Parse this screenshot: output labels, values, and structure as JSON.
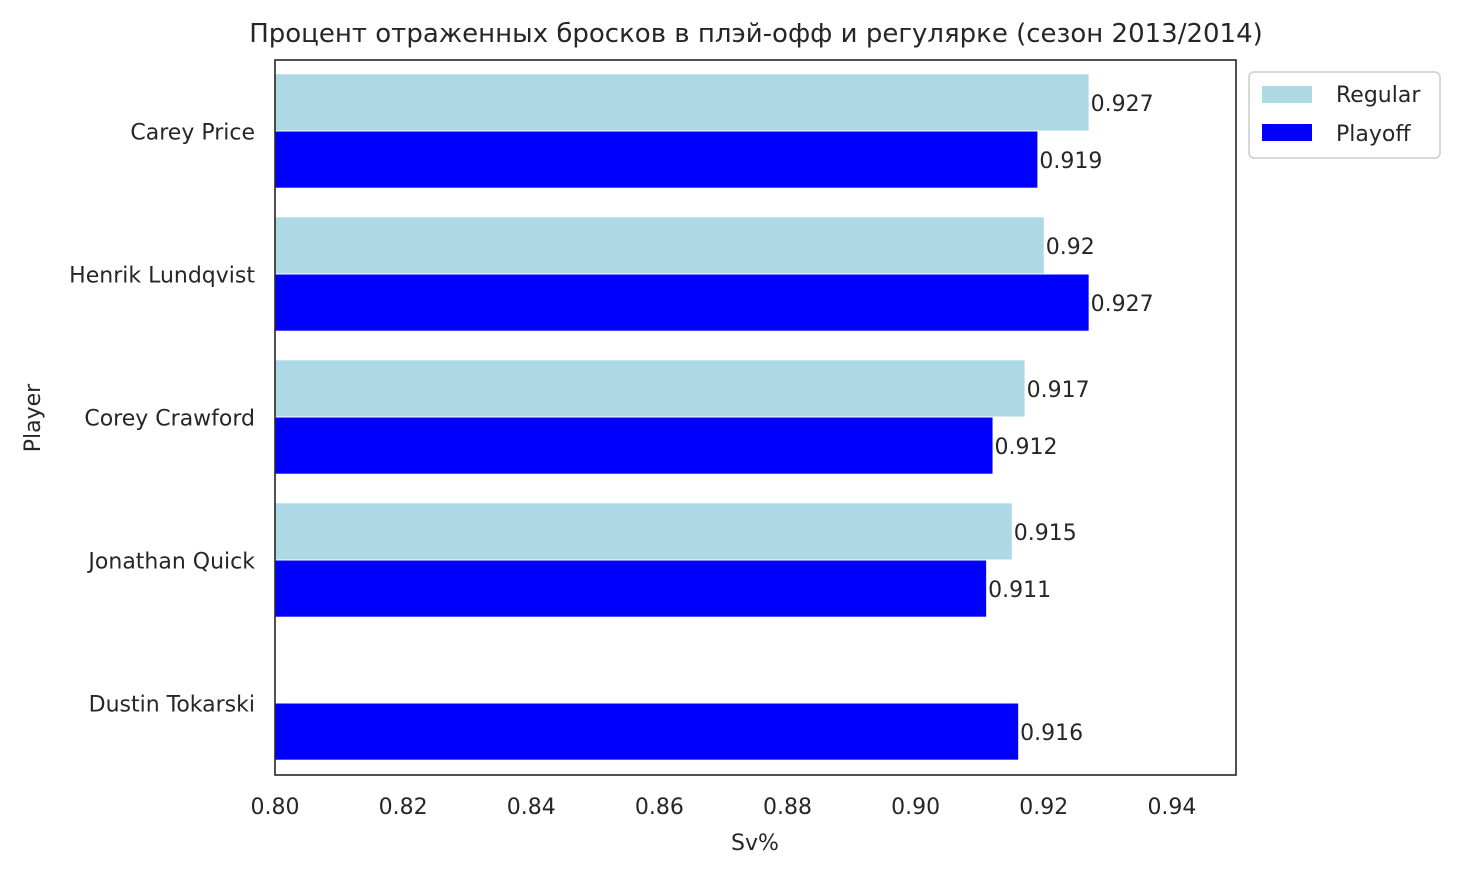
{
  "chart_data": {
    "type": "bar",
    "orientation": "horizontal",
    "title": "Процент отраженных бросков в плэй-офф и регулярке (сезон 2013/2014)",
    "xlabel": "Sv%",
    "ylabel": "Player",
    "xlim": [
      0.8,
      0.95
    ],
    "xticks": [
      "0.80",
      "0.82",
      "0.84",
      "0.86",
      "0.88",
      "0.90",
      "0.92",
      "0.94"
    ],
    "categories": [
      "Carey Price",
      "Henrik Lundqvist",
      "Corey Crawford",
      "Jonathan Quick",
      "Dustin Tokarski"
    ],
    "series": [
      {
        "name": "Regular",
        "color": "#add8e6",
        "values": [
          0.927,
          0.92,
          0.917,
          0.915,
          null
        ],
        "labels": [
          "0.927",
          "0.92",
          "0.917",
          "0.915",
          ""
        ]
      },
      {
        "name": "Playoff",
        "color": "#0000ff",
        "values": [
          0.919,
          0.927,
          0.912,
          0.911,
          0.916
        ],
        "labels": [
          "0.919",
          "0.927",
          "0.912",
          "0.911",
          "0.916"
        ]
      }
    ],
    "grid": false,
    "legend_position": "outside top-right"
  }
}
